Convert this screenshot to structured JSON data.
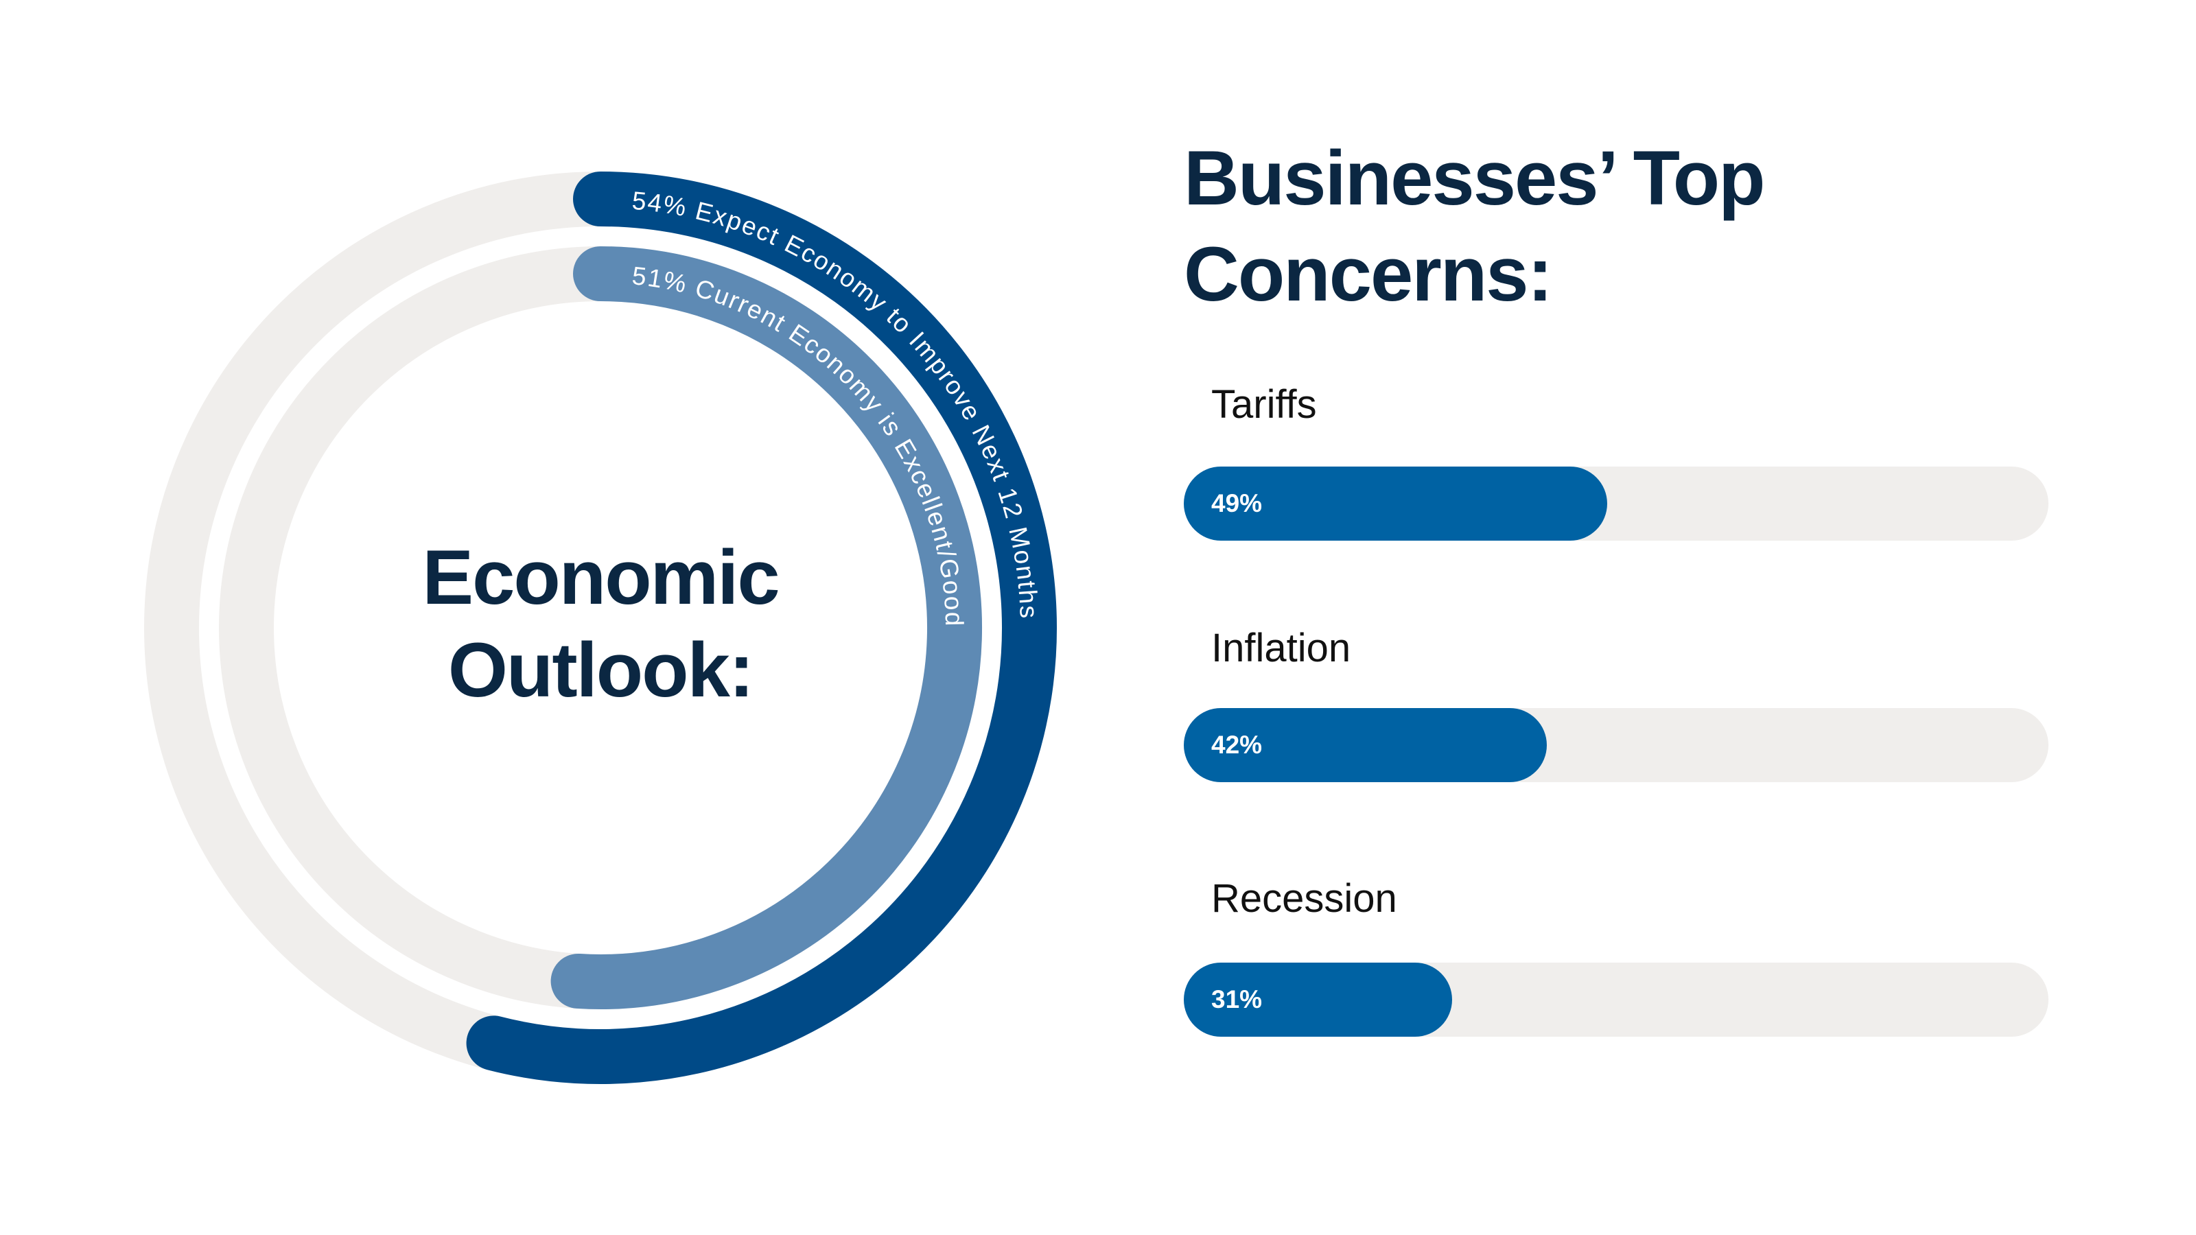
{
  "colors": {
    "background": "#ffffff",
    "track": "#f0eeec",
    "outer_ring": "#004a87",
    "inner_ring": "#5e8ab4",
    "bar": "#0062a3",
    "title": "#0b2742"
  },
  "chart_data": [
    {
      "type": "radial-bar",
      "center_title": [
        "Economic",
        "Outlook:"
      ],
      "rings": [
        {
          "label": "54% Expect Economy to Improve Next 12 Months",
          "value": 54
        },
        {
          "label": "51% Current Economy is Excellent/Good",
          "value": 51
        }
      ]
    },
    {
      "type": "bar",
      "orientation": "horizontal",
      "title": [
        "Businesses’ Top",
        "Concerns:"
      ],
      "categories": [
        "Tariffs",
        "Inflation",
        "Recession"
      ],
      "values": [
        49,
        42,
        31
      ],
      "value_labels": [
        "49%",
        "42%",
        "31%"
      ],
      "xlim": [
        0,
        100
      ]
    }
  ]
}
